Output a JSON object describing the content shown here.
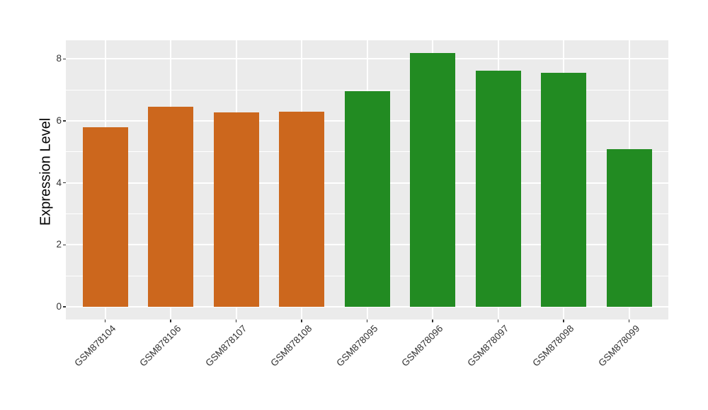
{
  "chart_data": {
    "type": "bar",
    "title": "",
    "xlabel": "",
    "ylabel": "Expression Level",
    "categories": [
      "GSM878104",
      "GSM878106",
      "GSM878107",
      "GSM878108",
      "GSM878095",
      "GSM878096",
      "GSM878097",
      "GSM878098",
      "GSM878099"
    ],
    "values": [
      5.8,
      6.46,
      6.27,
      6.3,
      6.96,
      8.2,
      7.63,
      7.55,
      5.09
    ],
    "bar_colors": [
      "#CC671D",
      "#CC671D",
      "#CC671D",
      "#CC671D",
      "#228B22",
      "#228B22",
      "#228B22",
      "#228B22",
      "#228B22"
    ],
    "yticks": [
      0,
      2,
      4,
      6,
      8
    ],
    "minor_yticks": [
      1,
      3,
      5,
      7
    ],
    "ylim": [
      0,
      8.6
    ],
    "grid": true,
    "legend": "none",
    "colors": {
      "orange_group": "#CC671D",
      "green_group": "#228B22",
      "panel_background": "#EBEBEB",
      "gridline": "#FFFFFF",
      "axis_text": "#333333",
      "figure_background": "#FFFFFF"
    }
  }
}
